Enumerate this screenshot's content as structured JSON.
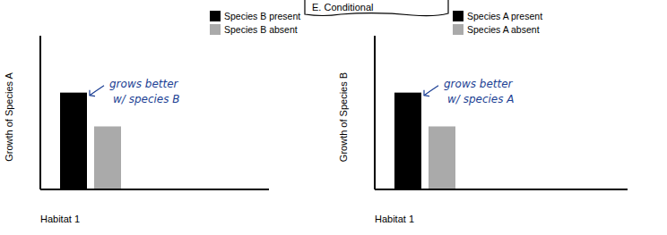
{
  "header": {
    "text": "E. Conditional"
  },
  "chart_data": [
    {
      "type": "bar",
      "categories": [
        "Habitat 1"
      ],
      "y_label": "Growth of Species A",
      "series": [
        {
          "name": "Species B present",
          "color": "#000000",
          "values": [
            6.3
          ]
        },
        {
          "name": "Species B absent",
          "color": "#aaaaaa",
          "values": [
            4.1
          ]
        }
      ],
      "ylim": [
        0,
        10
      ],
      "tick_labels": false,
      "legend": "top-right",
      "annotation": [
        "grows better",
        "w/ species B"
      ]
    },
    {
      "type": "bar",
      "categories": [
        "Habitat 1"
      ],
      "y_label": "Growth of Species B",
      "series": [
        {
          "name": "Species A present",
          "color": "#000000",
          "values": [
            6.3
          ]
        },
        {
          "name": "Species A absent",
          "color": "#aaaaaa",
          "values": [
            4.1
          ]
        }
      ],
      "ylim": [
        0,
        10
      ],
      "tick_labels": false,
      "legend": "top-right",
      "annotation": [
        "grows better",
        "w/ species A"
      ]
    }
  ]
}
